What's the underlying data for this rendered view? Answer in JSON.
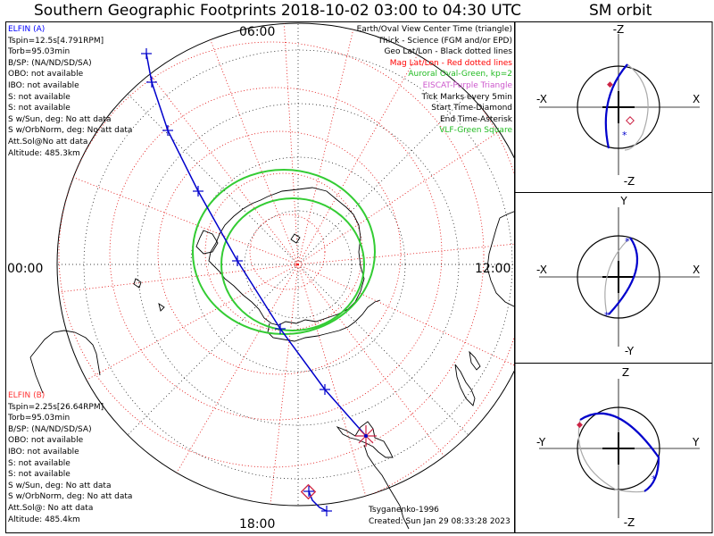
{
  "title": "Southern Geographic Footprints 2018-10-02 03:00 to 04:30 UTC",
  "right_title": "SM orbit",
  "map": {
    "time_labels": {
      "top": "06:00",
      "left": "00:00",
      "right": "12:00",
      "bottom": "18:00"
    },
    "legend": [
      {
        "text": "Earth/Oval View Center Time (triangle)",
        "color": "#000000"
      },
      {
        "text": "Thick - Science (FGM and/or EPD)",
        "color": "#000000"
      },
      {
        "text": "Geo Lat/Lon - Black dotted lines",
        "color": "#000000"
      },
      {
        "text": "Mag Lat/Lon - Red dotted lines",
        "color": "#ff0000"
      },
      {
        "text": "Auroral Oval-Green, kp=2",
        "color": "#22bb22"
      },
      {
        "text": "EISCAT-Purple Triangle",
        "color": "#cc55cc"
      },
      {
        "text": "Tick Marks every 5min",
        "color": "#000000"
      },
      {
        "text": "Start Time-Diamond",
        "color": "#000000"
      },
      {
        "text": "End Time-Asterisk",
        "color": "#000000"
      },
      {
        "text": "VLF-Green Square",
        "color": "#22bb22"
      }
    ],
    "elfin_a": {
      "header": "ELFIN (A)",
      "color": "#0000ff",
      "lines": [
        "Tspin=12.5s[4.791RPM]",
        "Torb=95.03min",
        "B/SP: (NA/ND/SD/SA)",
        "OBO: not available",
        "IBO: not available",
        "S: not available",
        "S: not available",
        "S w/Sun, deg: No att data",
        "S w/OrbNorm, deg: No att data",
        "Att.Sol@No att data",
        "Altitude: 485.3km"
      ]
    },
    "elfin_b": {
      "header": "ELFIN (B)",
      "color": "#ff3333",
      "lines": [
        "Tspin=2.25s[26.64RPM]",
        "Torb=95.03min",
        "B/SP: (NA/ND/SD/SA)",
        "OBO: not available",
        "IBO: not available",
        "S: not available",
        "S: not available",
        "S w/Sun, deg: No att data",
        "S w/OrbNorm, deg: No att data",
        "Att.Sol@: No att data",
        "Altitude: 485.4km"
      ]
    },
    "credit_model": "Tsyganenko-1996",
    "credit_created": "Created: Sun Jan 29 08:33:28 2023"
  },
  "orbit_panels": [
    {
      "top": "-Z",
      "bottom": "-Z",
      "left": "-X",
      "right": "X"
    },
    {
      "top": "Y",
      "bottom": "-Y",
      "left": "-X",
      "right": "X"
    },
    {
      "top": "Z",
      "bottom": "-Z",
      "left": "-Y",
      "right": "Y"
    }
  ],
  "colors": {
    "track": "#0000cc",
    "oval": "#33cc33",
    "mag_grid": "#ff0000",
    "geo_grid": "#000000"
  }
}
